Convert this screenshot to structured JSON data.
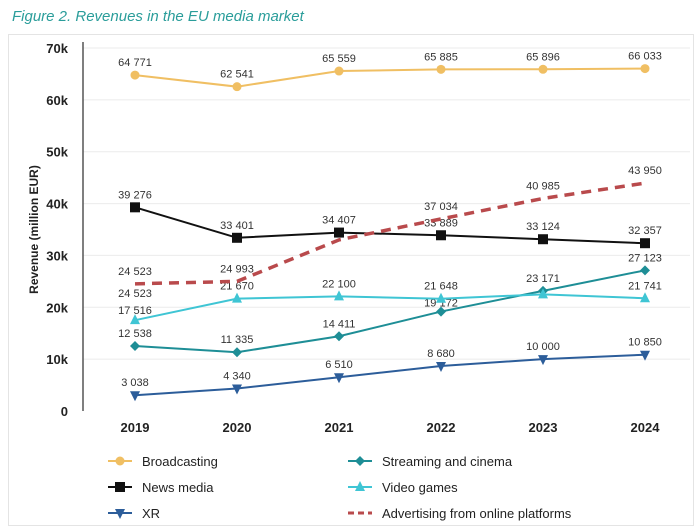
{
  "title": "Figure 2. Revenues in the EU media market",
  "chart_data": {
    "type": "line",
    "title": "Figure 2. Revenues in the EU media market",
    "ylabel": "Revenue (million EUR)",
    "xlabel": "",
    "ylim": [
      0,
      70000
    ],
    "yticks": [
      "0",
      "10k",
      "20k",
      "30k",
      "40k",
      "50k",
      "60k",
      "70k"
    ],
    "categories": [
      "2019",
      "2020",
      "2021",
      "2022",
      "2023",
      "2024"
    ],
    "grid": true,
    "legend": "bottom",
    "series": [
      {
        "name": "Broadcasting",
        "color": "#f0bf63",
        "marker": "circle",
        "dash": false,
        "values": [
          64771,
          62541,
          65559,
          65885,
          65896,
          66033
        ],
        "labels": [
          "64 771",
          "62 541",
          "65 559",
          "65 885",
          "65 896",
          "66 033"
        ]
      },
      {
        "name": "Streaming and cinema",
        "color": "#1e8e96",
        "marker": "diamond",
        "dash": false,
        "values": [
          12538,
          11335,
          14411,
          19172,
          23171,
          27123
        ],
        "labels": [
          "12 538",
          "11 335",
          "14 411",
          "19 172",
          "23 171",
          "27 123"
        ]
      },
      {
        "name": "News media",
        "color": "#111111",
        "marker": "square",
        "dash": false,
        "values": [
          39276,
          33401,
          34407,
          33889,
          33124,
          32357
        ],
        "labels": [
          "39 276",
          "33 401",
          "34 407",
          "33 889",
          "33 124",
          "32 357"
        ]
      },
      {
        "name": "Video games",
        "color": "#3fc5d4",
        "marker": "triangle-up",
        "dash": false,
        "values": [
          17516,
          21670,
          22100,
          21648,
          22500,
          21741
        ],
        "labels": [
          "17 516",
          "21 670",
          "22 100",
          "21 648",
          "",
          "21 741"
        ]
      },
      {
        "name": "XR",
        "color": "#2c5d9a",
        "marker": "triangle-down",
        "dash": false,
        "values": [
          3038,
          4340,
          6510,
          8680,
          10000,
          10850
        ],
        "labels": [
          "3 038",
          "4 340",
          "6 510",
          "8 680",
          "10 000",
          "10 850"
        ]
      },
      {
        "name": "Advertising from online platforms",
        "color": "#b94a4c",
        "marker": "none",
        "dash": true,
        "values": [
          24523,
          24993,
          33000,
          37034,
          40985,
          43950
        ],
        "labels": [
          "24 523",
          "24 993",
          "",
          "37 034",
          "40 985",
          "43 950"
        ]
      }
    ],
    "annotations": [
      "24 523"
    ]
  }
}
